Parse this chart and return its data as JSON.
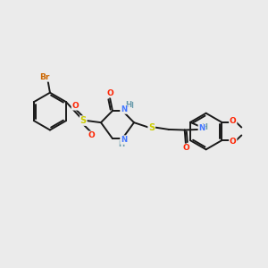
{
  "bg_color": "#ebebeb",
  "bond_color": "#1a1a1a",
  "atom_colors": {
    "Br": "#cc6600",
    "S": "#cccc00",
    "O": "#ff2200",
    "N": "#4477ff",
    "C": "#1a1a1a"
  },
  "layout": {
    "xlim": [
      0,
      10
    ],
    "ylim": [
      0,
      10
    ],
    "figsize": [
      3.0,
      3.0
    ],
    "dpi": 100
  }
}
